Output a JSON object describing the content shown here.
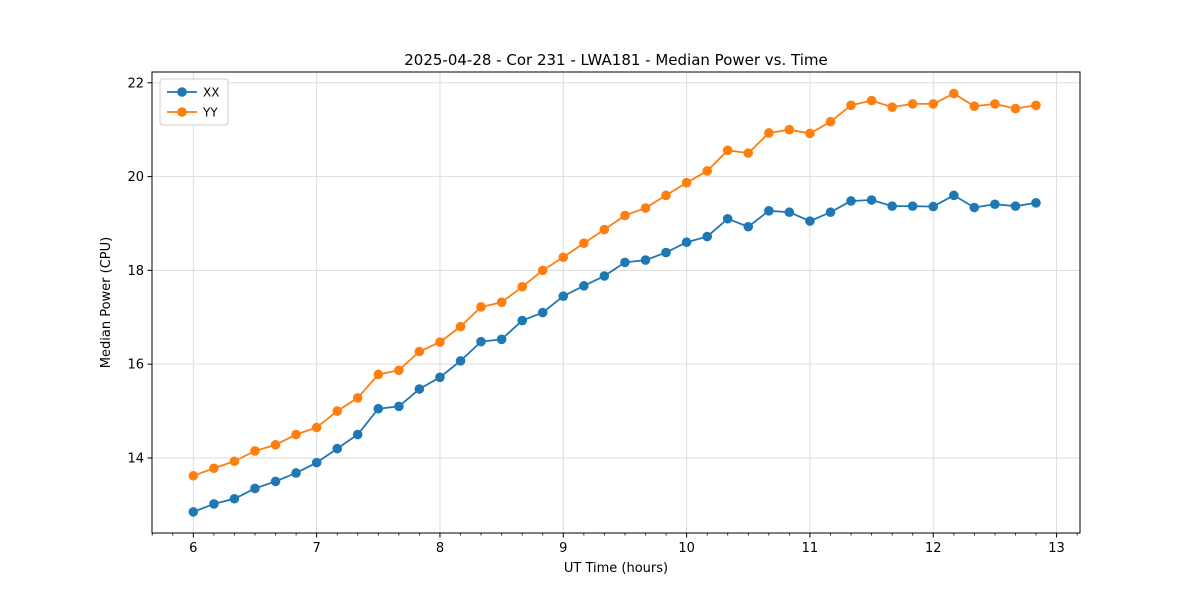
{
  "chart_data": {
    "type": "line",
    "title": "2025-04-28 - Cor 231 - LWA181 - Median Power vs. Time",
    "xlabel": "UT Time (hours)",
    "ylabel": "Median Power (CPU)",
    "xlim": [
      5.665,
      13.19
    ],
    "ylim": [
      12.4,
      22.23
    ],
    "xticks": [
      6,
      7,
      8,
      9,
      10,
      11,
      12,
      13
    ],
    "yticks": [
      14,
      16,
      18,
      20,
      22
    ],
    "x_minor_step": 0.16667,
    "grid": true,
    "grid_color": "#dddddd",
    "spine_color": "#000000",
    "background": "#ffffff",
    "legend_position": "upper-left",
    "x": [
      6.0,
      6.167,
      6.333,
      6.5,
      6.667,
      6.833,
      7.0,
      7.167,
      7.333,
      7.5,
      7.667,
      7.833,
      8.0,
      8.167,
      8.333,
      8.5,
      8.667,
      8.833,
      9.0,
      9.167,
      9.333,
      9.5,
      9.667,
      9.833,
      10.0,
      10.167,
      10.333,
      10.5,
      10.667,
      10.833,
      11.0,
      11.167,
      11.333,
      11.5,
      11.667,
      11.833,
      12.0,
      12.167,
      12.333,
      12.5,
      12.667,
      12.833
    ],
    "series": [
      {
        "name": "XX",
        "color": "#1f77b4",
        "values": [
          12.85,
          13.02,
          13.13,
          13.35,
          13.5,
          13.68,
          13.9,
          14.2,
          14.5,
          15.05,
          15.1,
          15.47,
          15.72,
          16.07,
          16.48,
          16.53,
          16.93,
          17.1,
          17.45,
          17.67,
          17.88,
          18.17,
          18.22,
          18.38,
          18.6,
          18.72,
          19.1,
          18.93,
          19.27,
          19.24,
          19.05,
          19.24,
          19.48,
          19.5,
          19.37,
          19.37,
          19.36,
          19.6,
          19.34,
          19.41,
          19.37,
          19.44
        ]
      },
      {
        "name": "YY",
        "color": "#ff7f0e",
        "values": [
          13.62,
          13.78,
          13.93,
          14.15,
          14.28,
          14.5,
          14.65,
          15.0,
          15.28,
          15.78,
          15.87,
          16.27,
          16.47,
          16.8,
          17.22,
          17.32,
          17.65,
          18.0,
          18.28,
          18.58,
          18.87,
          19.17,
          19.33,
          19.6,
          19.87,
          20.12,
          20.56,
          20.5,
          20.93,
          21.0,
          20.92,
          21.17,
          21.52,
          21.62,
          21.48,
          21.55,
          21.55,
          21.77,
          21.5,
          21.55,
          21.45,
          21.52
        ]
      }
    ]
  }
}
